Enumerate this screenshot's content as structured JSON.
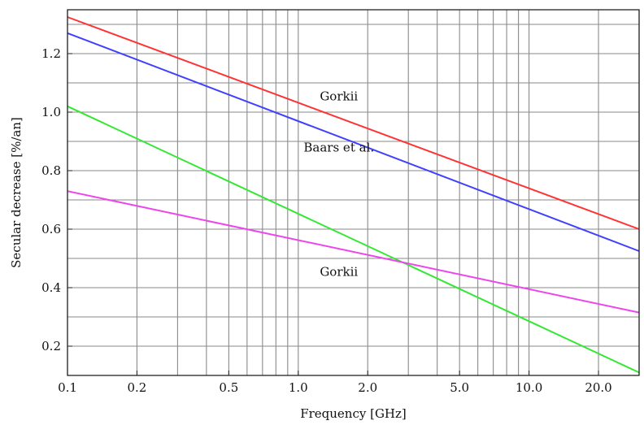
{
  "chart_data": {
    "type": "line",
    "xscale": "log",
    "xlim": [
      0.1,
      30
    ],
    "ylim": [
      0.1,
      1.35
    ],
    "xlabel": "Frequency [GHz]",
    "ylabel": "Secular decrease [%/an]",
    "grid": true,
    "x_ticks": [
      0.1,
      0.2,
      0.5,
      1.0,
      2.0,
      5.0,
      10.0,
      20.0
    ],
    "x_tick_labels": [
      "0.1",
      "0.2",
      "0.5",
      "1.0",
      "2.0",
      "5.0",
      "10.0",
      "20.0"
    ],
    "y_ticks": [
      0.2,
      0.4,
      0.6,
      0.8,
      1.0,
      1.2
    ],
    "y_tick_labels": [
      "0.2",
      "0.4",
      "0.6",
      "0.8",
      "1.0",
      "1.2"
    ],
    "series": [
      {
        "color": "#ff3333",
        "x": [
          0.1,
          30
        ],
        "y": [
          1.325,
          0.6
        ]
      },
      {
        "color": "#4040ff",
        "x": [
          0.1,
          30
        ],
        "y": [
          1.27,
          0.525
        ]
      },
      {
        "color": "#33e833",
        "x": [
          0.1,
          30
        ],
        "y": [
          1.02,
          0.11
        ]
      },
      {
        "color": "#ee44ee",
        "x": [
          0.1,
          30
        ],
        "y": [
          0.73,
          0.315
        ]
      }
    ],
    "annotations": [
      {
        "text": "Gorkii",
        "x": 1.5,
        "y": 1.04
      },
      {
        "text": "Baars et al.",
        "x": 1.5,
        "y": 0.865
      },
      {
        "text": "Gorkii",
        "x": 1.5,
        "y": 0.44
      }
    ]
  }
}
